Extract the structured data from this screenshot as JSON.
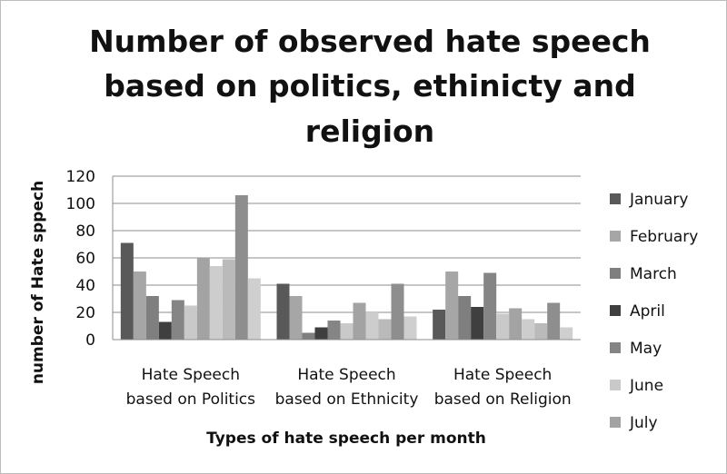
{
  "chart_data": {
    "type": "bar",
    "title_lines": [
      "Number of observed hate speech",
      "based on politics, ethinicty and",
      "religion"
    ],
    "xlabel": "Types of hate speech per month",
    "ylabel": "number of Hate sppech",
    "ylim": [
      0,
      120
    ],
    "yticks": [
      0,
      20,
      40,
      60,
      80,
      100,
      120
    ],
    "grid": true,
    "legend_position": "right",
    "categories": [
      [
        "Hate Speech",
        "based on Politics"
      ],
      [
        "Hate Speech",
        "based on Ethnicity"
      ],
      [
        "Hate Speech",
        "based on Religion"
      ]
    ],
    "series": [
      {
        "name": "January",
        "color": "#595959",
        "values": [
          71,
          41,
          22
        ]
      },
      {
        "name": "February",
        "color": "#a6a6a6",
        "values": [
          50,
          32,
          50
        ]
      },
      {
        "name": "March",
        "color": "#7f7f7f",
        "values": [
          32,
          5,
          32
        ]
      },
      {
        "name": "April",
        "color": "#3f3f3f",
        "values": [
          13,
          9,
          24
        ]
      },
      {
        "name": "May",
        "color": "#858585",
        "values": [
          29,
          14,
          49
        ]
      },
      {
        "name": "June",
        "color": "#c9c9c9",
        "values": [
          25,
          12,
          19
        ]
      },
      {
        "name": "July",
        "color": "#a3a3a3",
        "values": [
          60,
          27,
          23
        ]
      },
      {
        "name": "",
        "color": "#cdcdcd",
        "values": [
          54,
          20,
          15
        ]
      },
      {
        "name": "",
        "color": "#bababa",
        "values": [
          59,
          15,
          12
        ]
      },
      {
        "name": "",
        "color": "#8e8e8e",
        "values": [
          106,
          41,
          27
        ]
      },
      {
        "name": "",
        "color": "#cfcfcf",
        "values": [
          45,
          17,
          9
        ]
      }
    ]
  }
}
